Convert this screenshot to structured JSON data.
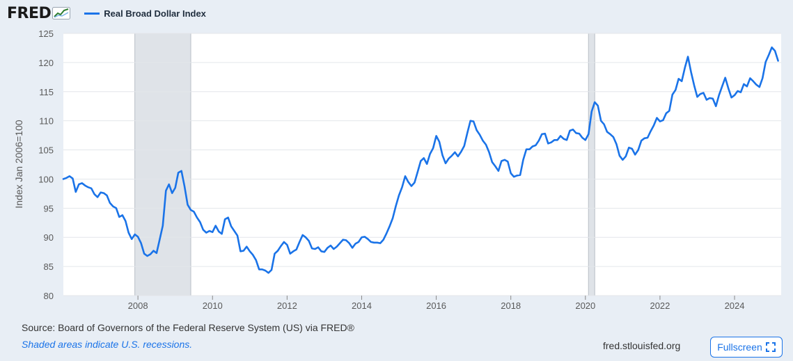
{
  "header": {
    "logo_text": "FRED",
    "legend_label": "Real Broad Dollar Index"
  },
  "colors": {
    "series": "#1a73e8",
    "recession": "#dfe3e8",
    "plot_bg": "#ffffff",
    "page_bg": "#e8eef5"
  },
  "footer": {
    "source": "Source: Board of Governors of the Federal Reserve System (US) via FRED®",
    "note": "Shaded areas indicate U.S. recessions.",
    "site": "fred.stlouisfed.org",
    "fullscreen_label": "Fullscreen"
  },
  "icons": {
    "logo": "fred-graph-icon",
    "fullscreen": "fullscreen-icon"
  },
  "chart_data": {
    "type": "line",
    "title": "",
    "xlabel": "",
    "ylabel": "Index Jan 2006=100",
    "ylim": [
      80,
      125
    ],
    "xlim": [
      2006.0,
      2025.25
    ],
    "yticks": [
      80,
      85,
      90,
      95,
      100,
      105,
      110,
      115,
      120,
      125
    ],
    "xticks": [
      2008,
      2010,
      2012,
      2014,
      2016,
      2018,
      2020,
      2022,
      2024
    ],
    "grid": "horizontal",
    "recessions": [
      {
        "start": 2007.917,
        "end": 2009.417
      },
      {
        "start": 2020.083,
        "end": 2020.25
      }
    ],
    "series": [
      {
        "name": "Real Broad Dollar Index",
        "x": [
          2006.0,
          2006.083,
          2006.167,
          2006.25,
          2006.333,
          2006.417,
          2006.5,
          2006.583,
          2006.667,
          2006.75,
          2006.833,
          2006.917,
          2007.0,
          2007.083,
          2007.167,
          2007.25,
          2007.333,
          2007.417,
          2007.5,
          2007.583,
          2007.667,
          2007.75,
          2007.833,
          2007.917,
          2008.0,
          2008.083,
          2008.167,
          2008.25,
          2008.333,
          2008.417,
          2008.5,
          2008.583,
          2008.667,
          2008.75,
          2008.833,
          2008.917,
          2009.0,
          2009.083,
          2009.167,
          2009.25,
          2009.333,
          2009.417,
          2009.5,
          2009.583,
          2009.667,
          2009.75,
          2009.833,
          2009.917,
          2010.0,
          2010.083,
          2010.167,
          2010.25,
          2010.333,
          2010.417,
          2010.5,
          2010.583,
          2010.667,
          2010.75,
          2010.833,
          2010.917,
          2011.0,
          2011.083,
          2011.167,
          2011.25,
          2011.333,
          2011.417,
          2011.5,
          2011.583,
          2011.667,
          2011.75,
          2011.833,
          2011.917,
          2012.0,
          2012.083,
          2012.167,
          2012.25,
          2012.333,
          2012.417,
          2012.5,
          2012.583,
          2012.667,
          2012.75,
          2012.833,
          2012.917,
          2013.0,
          2013.083,
          2013.167,
          2013.25,
          2013.333,
          2013.417,
          2013.5,
          2013.583,
          2013.667,
          2013.75,
          2013.833,
          2013.917,
          2014.0,
          2014.083,
          2014.167,
          2014.25,
          2014.333,
          2014.417,
          2014.5,
          2014.583,
          2014.667,
          2014.75,
          2014.833,
          2014.917,
          2015.0,
          2015.083,
          2015.167,
          2015.25,
          2015.333,
          2015.417,
          2015.5,
          2015.583,
          2015.667,
          2015.75,
          2015.833,
          2015.917,
          2016.0,
          2016.083,
          2016.167,
          2016.25,
          2016.333,
          2016.417,
          2016.5,
          2016.583,
          2016.667,
          2016.75,
          2016.833,
          2016.917,
          2017.0,
          2017.083,
          2017.167,
          2017.25,
          2017.333,
          2017.417,
          2017.5,
          2017.583,
          2017.667,
          2017.75,
          2017.833,
          2017.917,
          2018.0,
          2018.083,
          2018.167,
          2018.25,
          2018.333,
          2018.417,
          2018.5,
          2018.583,
          2018.667,
          2018.75,
          2018.833,
          2018.917,
          2019.0,
          2019.083,
          2019.167,
          2019.25,
          2019.333,
          2019.417,
          2019.5,
          2019.583,
          2019.667,
          2019.75,
          2019.833,
          2019.917,
          2020.0,
          2020.083,
          2020.167,
          2020.25,
          2020.333,
          2020.417,
          2020.5,
          2020.583,
          2020.667,
          2020.75,
          2020.833,
          2020.917,
          2021.0,
          2021.083,
          2021.167,
          2021.25,
          2021.333,
          2021.417,
          2021.5,
          2021.583,
          2021.667,
          2021.75,
          2021.833,
          2021.917,
          2022.0,
          2022.083,
          2022.167,
          2022.25,
          2022.333,
          2022.417,
          2022.5,
          2022.583,
          2022.667,
          2022.75,
          2022.833,
          2022.917,
          2023.0,
          2023.083,
          2023.167,
          2023.25,
          2023.333,
          2023.417,
          2023.5,
          2023.583,
          2023.667,
          2023.75,
          2023.833,
          2023.917,
          2024.0,
          2024.083,
          2024.167,
          2024.25,
          2024.333,
          2024.417,
          2024.5,
          2024.583,
          2024.667,
          2024.75,
          2024.833,
          2024.917,
          2025.0,
          2025.083,
          2025.167
        ],
        "values": [
          100.0,
          100.2,
          100.5,
          100.1,
          97.8,
          99.1,
          99.3,
          98.9,
          98.6,
          98.4,
          97.4,
          96.9,
          97.7,
          97.6,
          97.2,
          95.9,
          95.3,
          95.0,
          93.5,
          93.8,
          92.8,
          90.8,
          89.7,
          90.5,
          90.1,
          89.0,
          87.2,
          86.8,
          87.1,
          87.7,
          87.3,
          89.6,
          92.0,
          98.0,
          99.1,
          97.6,
          98.5,
          101.1,
          101.4,
          98.7,
          95.6,
          94.7,
          94.4,
          93.4,
          92.6,
          91.3,
          90.8,
          91.1,
          90.9,
          92.0,
          91.0,
          90.6,
          93.1,
          93.4,
          91.9,
          91.1,
          90.3,
          87.6,
          87.7,
          88.4,
          87.6,
          87.0,
          86.1,
          84.5,
          84.5,
          84.3,
          83.9,
          84.4,
          87.2,
          87.7,
          88.5,
          89.2,
          88.7,
          87.2,
          87.6,
          87.9,
          89.2,
          90.4,
          90.0,
          89.4,
          88.1,
          88.0,
          88.3,
          87.6,
          87.5,
          88.2,
          88.6,
          88.0,
          88.4,
          89.0,
          89.6,
          89.5,
          89.0,
          88.2,
          88.9,
          89.2,
          90.0,
          90.1,
          89.7,
          89.2,
          89.1,
          89.1,
          89.0,
          89.6,
          90.7,
          91.9,
          93.3,
          95.4,
          97.2,
          98.6,
          100.5,
          99.5,
          98.8,
          99.4,
          101.2,
          103.1,
          103.6,
          102.6,
          104.3,
          105.3,
          107.4,
          106.4,
          104.1,
          102.7,
          103.5,
          104.0,
          104.6,
          103.9,
          104.7,
          105.7,
          107.9,
          110.0,
          109.9,
          108.4,
          107.6,
          106.6,
          105.9,
          104.6,
          102.9,
          102.2,
          101.4,
          103.1,
          103.3,
          103.0,
          101.0,
          100.4,
          100.6,
          100.7,
          103.3,
          105.1,
          105.1,
          105.6,
          105.8,
          106.6,
          107.7,
          107.8,
          106.1,
          106.3,
          106.7,
          106.7,
          107.4,
          106.9,
          106.7,
          108.3,
          108.5,
          107.9,
          107.8,
          107.1,
          106.7,
          107.7,
          111.6,
          113.2,
          112.6,
          110.0,
          109.4,
          108.1,
          107.7,
          107.2,
          106.0,
          104.0,
          103.3,
          103.9,
          105.4,
          105.2,
          104.2,
          105.0,
          106.6,
          107.0,
          107.1,
          108.2,
          109.2,
          110.5,
          109.9,
          110.1,
          111.3,
          111.7,
          114.5,
          115.3,
          117.2,
          116.8,
          119.1,
          121.0,
          118.4,
          116.1,
          114.1,
          114.6,
          114.8,
          113.6,
          113.9,
          113.8,
          112.5,
          114.4,
          115.9,
          117.4,
          115.6,
          114.0,
          114.4,
          115.1,
          114.9,
          116.3,
          115.9,
          117.3,
          116.8,
          116.2,
          115.8,
          117.3,
          120.1,
          121.3,
          122.6,
          122.0,
          120.3
        ]
      }
    ]
  }
}
